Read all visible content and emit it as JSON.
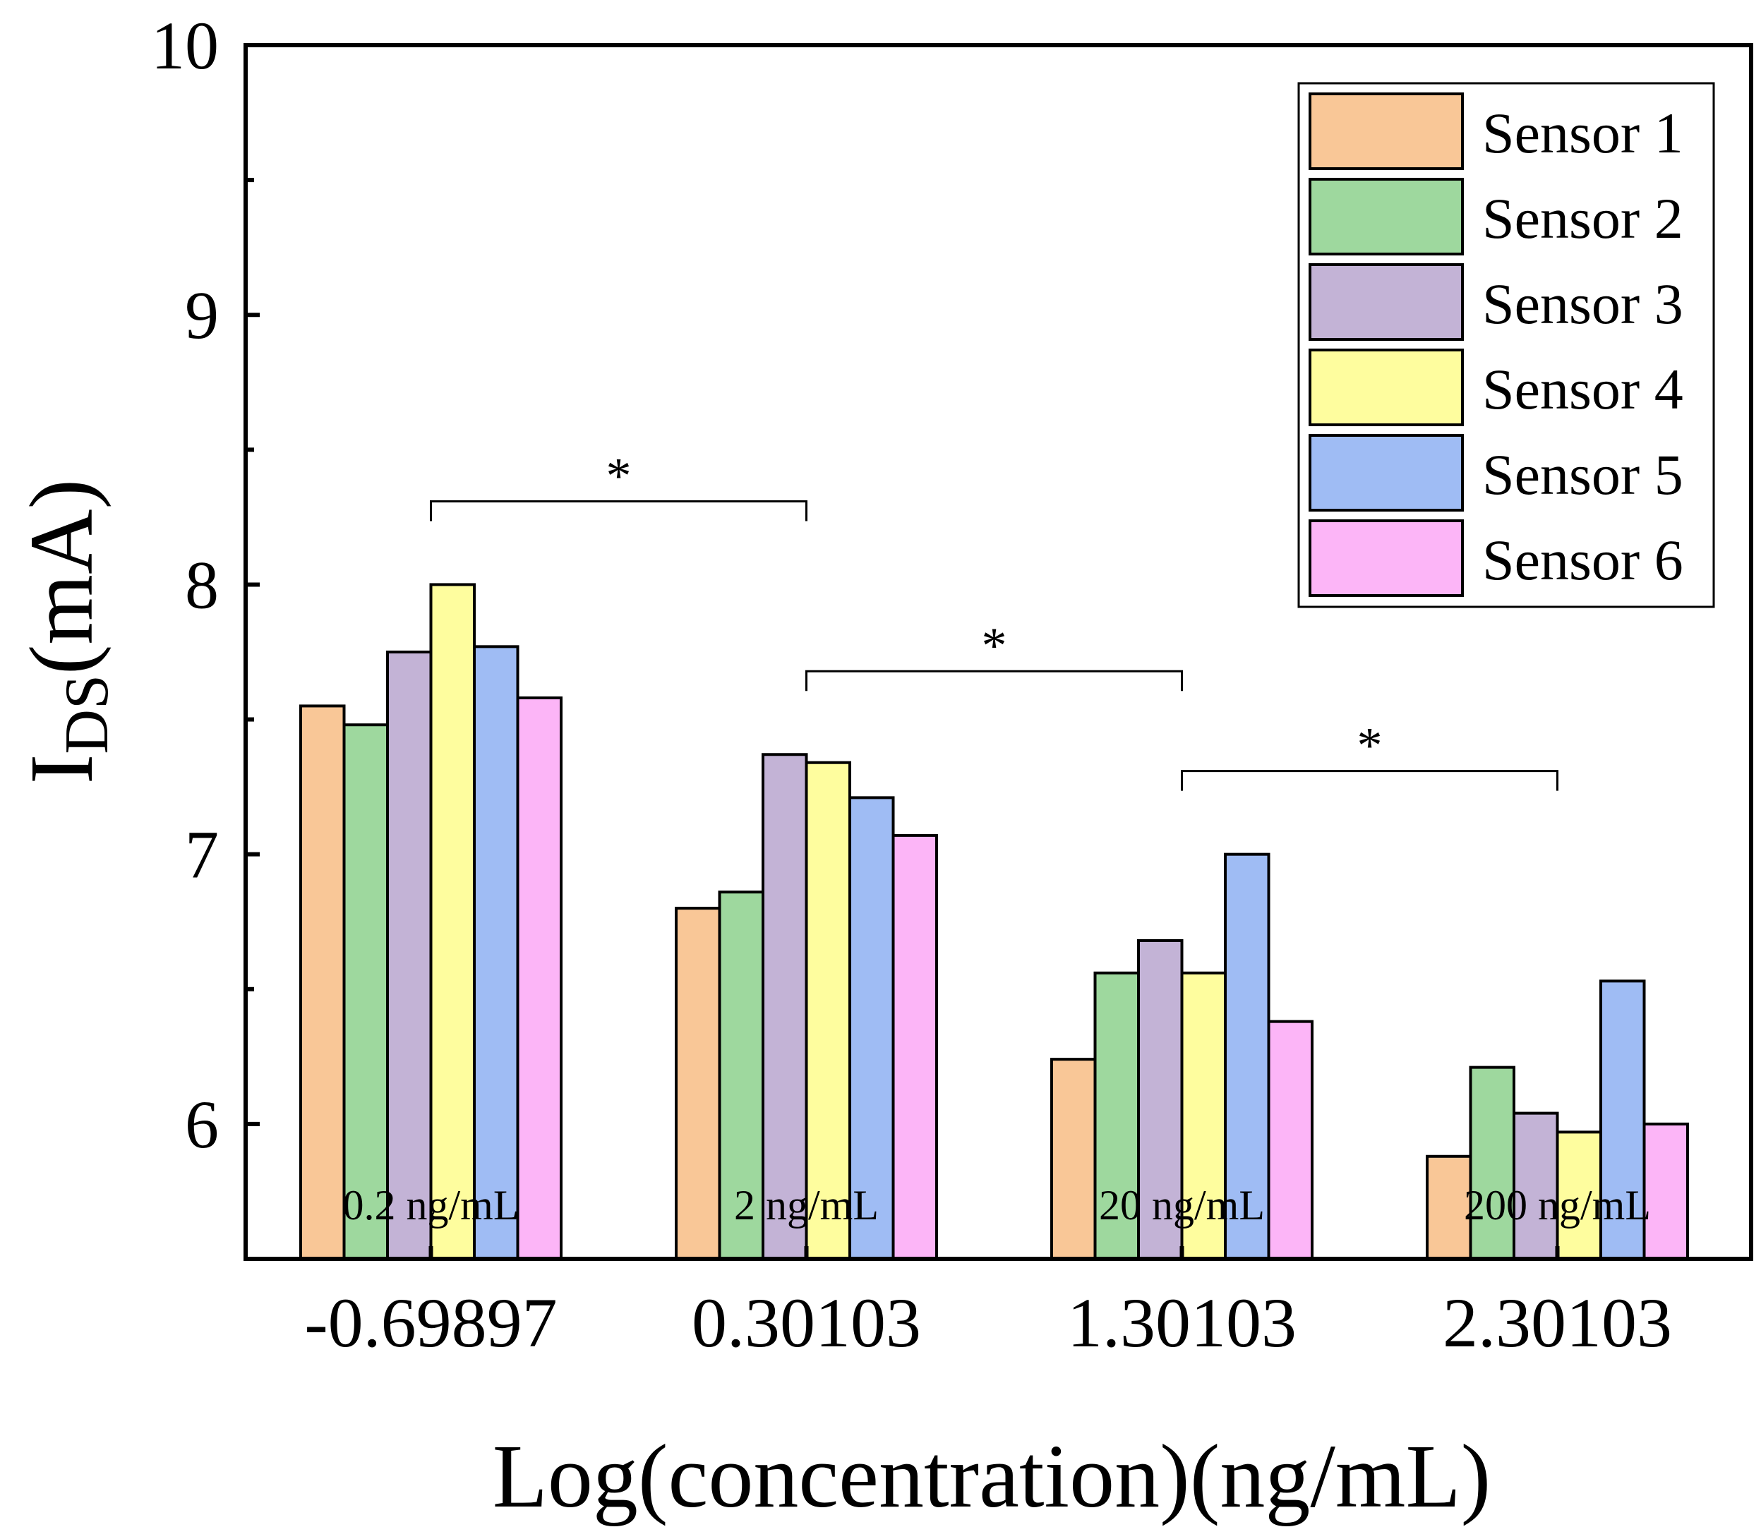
{
  "chart_data": {
    "type": "bar",
    "xlabel": "Log(concentration)(ng/mL)",
    "ylabel_main": "I",
    "ylabel_sub": "DS",
    "ylabel_unit": "(mA)",
    "ylim": [
      5.5,
      10
    ],
    "yticks": [
      "6",
      "7",
      "8",
      "9",
      "10"
    ],
    "categories": [
      "-0.69897",
      "0.30103",
      "1.30103",
      "2.30103"
    ],
    "concentration_labels": [
      "0.2 ng/mL",
      "2 ng/mL",
      "20 ng/mL",
      "200 ng/mL"
    ],
    "legend_position": "top-right",
    "grid": false,
    "series": [
      {
        "name": "Sensor 1",
        "color": "#F9C797",
        "values": [
          7.55,
          6.8,
          6.24,
          5.88
        ]
      },
      {
        "name": "Sensor 2",
        "color": "#9ED89E",
        "values": [
          7.48,
          6.86,
          6.56,
          6.21
        ]
      },
      {
        "name": "Sensor 3",
        "color": "#C3B3D6",
        "values": [
          7.75,
          7.37,
          6.68,
          6.04
        ]
      },
      {
        "name": "Sensor 4",
        "color": "#FEFD9E",
        "values": [
          8.0,
          7.34,
          6.56,
          5.97
        ]
      },
      {
        "name": "Sensor 5",
        "color": "#9FBCF4",
        "values": [
          7.77,
          7.21,
          7.0,
          6.53
        ]
      },
      {
        "name": "Sensor 6",
        "color": "#FCB5F7",
        "values": [
          7.58,
          7.07,
          6.38,
          6.0
        ]
      }
    ],
    "significance": [
      {
        "from": 0,
        "to": 1,
        "label": "*"
      },
      {
        "from": 1,
        "to": 2,
        "label": "*"
      },
      {
        "from": 2,
        "to": 3,
        "label": "*"
      }
    ]
  }
}
